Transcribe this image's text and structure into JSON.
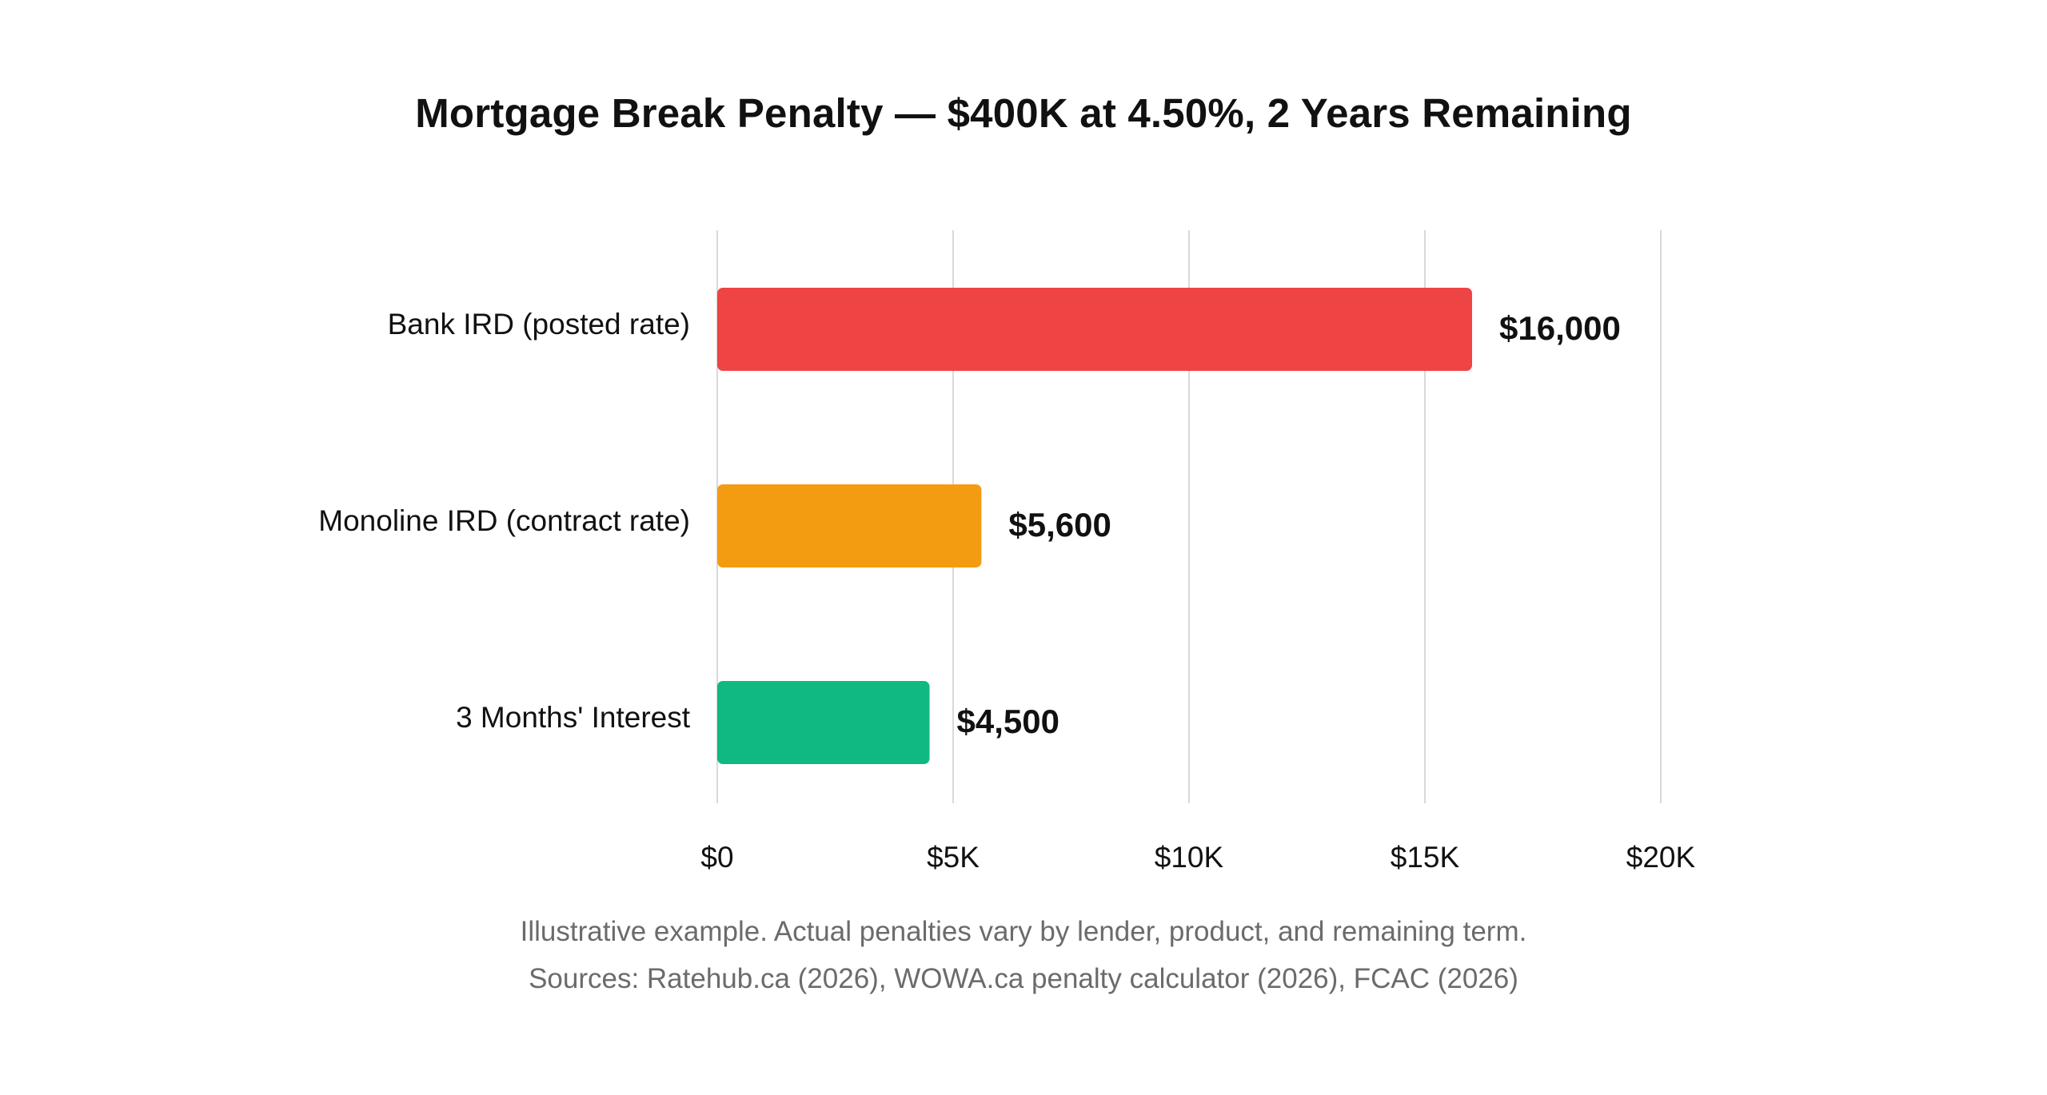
{
  "chart_data": {
    "type": "bar",
    "orientation": "horizontal",
    "title": "Mortgage Break Penalty — $400K at 4.50%, 2 Years Remaining",
    "categories": [
      "Bank IRD (posted rate)",
      "Monoline IRD (contract rate)",
      "3 Months' Interest"
    ],
    "values": [
      16000,
      5600,
      4500
    ],
    "value_labels": [
      "$16,000",
      "$5,600",
      "$4,500"
    ],
    "colors": [
      "#ef4444",
      "#f39c12",
      "#10b981"
    ],
    "xlim": [
      0,
      20000
    ],
    "x_ticks": [
      0,
      5000,
      10000,
      15000,
      20000
    ],
    "x_tick_labels": [
      "$0",
      "$5K",
      "$10K",
      "$15K",
      "$20K"
    ],
    "xlabel": "",
    "ylabel": "",
    "grid": "vertical",
    "legend": "none"
  },
  "footnotes": {
    "note": "Illustrative example. Actual penalties vary by lender, product, and remaining term.",
    "sources": "Sources: Ratehub.ca (2026), WOWA.ca penalty calculator (2026), FCAC (2026)"
  }
}
